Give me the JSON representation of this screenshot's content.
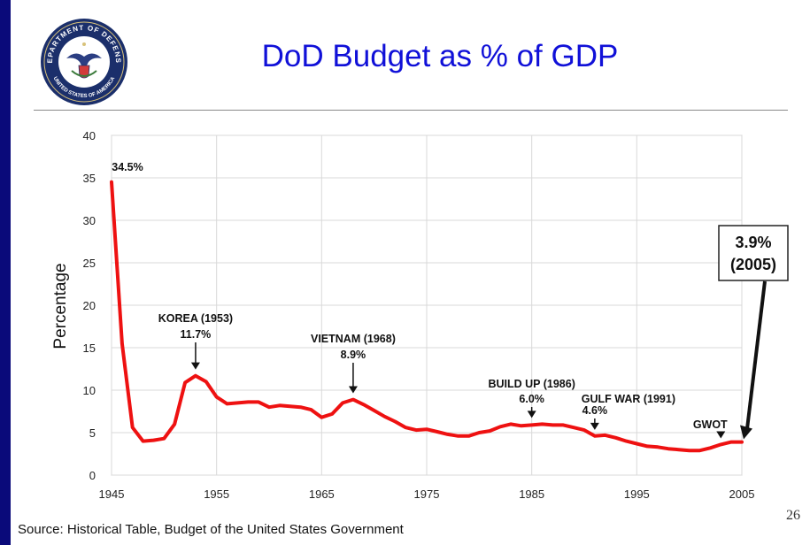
{
  "slide": {
    "title": "DoD Budget as % of GDP",
    "source": "Source: Historical Table, Budget of the United States Government",
    "page_number": "26",
    "seal": {
      "top_text": "DEPARTMENT OF DEFENSE",
      "bottom_text": "UNITED STATES OF AMERICA",
      "ring_color": "#1b2f6b",
      "inner_color": "#ffffff"
    }
  },
  "colors": {
    "title": "#1010d8",
    "line": "#ee1111",
    "border": "#0a0a7a"
  },
  "chart_data": {
    "type": "line",
    "title": "",
    "xlabel": "",
    "ylabel": "Percentage",
    "xlim": [
      1945,
      2005
    ],
    "ylim": [
      0,
      40
    ],
    "xticks": [
      1945,
      1955,
      1965,
      1975,
      1985,
      1995,
      2005
    ],
    "yticks": [
      0,
      5,
      10,
      15,
      20,
      25,
      30,
      35,
      40
    ],
    "grid": true,
    "legend": false,
    "series": [
      {
        "x": [
          1945,
          1946,
          1947,
          1948,
          1949,
          1950,
          1951,
          1952,
          1953,
          1954,
          1955,
          1956,
          1957,
          1958,
          1959,
          1960,
          1961,
          1962,
          1963,
          1964,
          1965,
          1966,
          1967,
          1968,
          1969,
          1970,
          1971,
          1972,
          1973,
          1974,
          1975,
          1976,
          1977,
          1978,
          1979,
          1980,
          1981,
          1982,
          1983,
          1984,
          1985,
          1986,
          1987,
          1988,
          1989,
          1990,
          1991,
          1992,
          1993,
          1994,
          1995,
          1996,
          1997,
          1998,
          1999,
          2000,
          2001,
          2002,
          2003,
          2004,
          2005
        ],
        "y": [
          34.5,
          15.5,
          5.6,
          4.0,
          4.1,
          4.3,
          6.0,
          10.9,
          11.7,
          11.0,
          9.2,
          8.4,
          8.5,
          8.6,
          8.6,
          8.0,
          8.2,
          8.1,
          8.0,
          7.7,
          6.8,
          7.2,
          8.5,
          8.9,
          8.3,
          7.6,
          6.9,
          6.3,
          5.6,
          5.3,
          5.4,
          5.1,
          4.8,
          4.6,
          4.6,
          5.0,
          5.2,
          5.7,
          6.0,
          5.8,
          5.9,
          6.0,
          5.9,
          5.9,
          5.6,
          5.3,
          4.6,
          4.7,
          4.4,
          4.0,
          3.7,
          3.4,
          3.3,
          3.1,
          3.0,
          2.9,
          2.9,
          3.2,
          3.6,
          3.9,
          3.9
        ]
      }
    ],
    "annotations": [
      {
        "label": "34.5%",
        "sub": "",
        "x": 1945,
        "y": 34.5,
        "arrow": false
      },
      {
        "label": "KOREA (1953)",
        "sub": "11.7%",
        "x": 1953,
        "y": 11.7,
        "arrow": true
      },
      {
        "label": "VIETNAM (1968)",
        "sub": "8.9%",
        "x": 1968,
        "y": 8.9,
        "arrow": true
      },
      {
        "label": "BUILD UP (1986)",
        "sub": "6.0%",
        "x": 1985,
        "y": 6.0,
        "arrow": true
      },
      {
        "label": "GULF WAR (1991)",
        "sub": "4.6%",
        "x": 1991,
        "y": 4.6,
        "arrow": true
      },
      {
        "label": "GWOT",
        "sub": "",
        "x": 2003,
        "y": 3.6,
        "arrow": true
      }
    ],
    "callout": {
      "line1": "3.9%",
      "line2": "(2005)",
      "x": 2005,
      "y": 3.9
    }
  }
}
